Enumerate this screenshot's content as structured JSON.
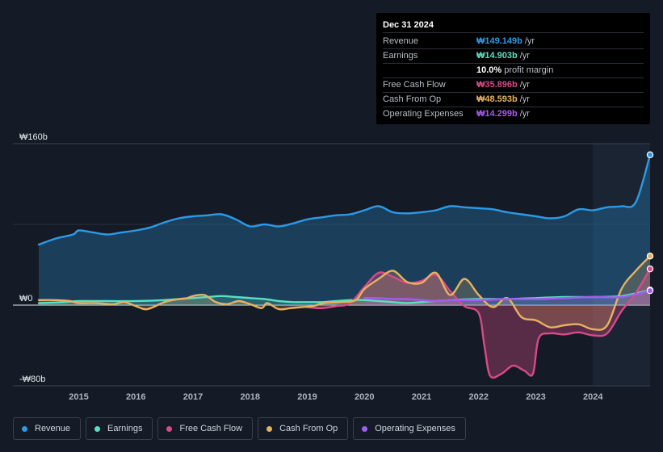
{
  "tooltip": {
    "date": "Dec 31 2024",
    "rows": [
      {
        "label": "Revenue",
        "value": "₩149.149b",
        "unit": "/yr",
        "color": "#2b9ae6"
      },
      {
        "label": "Earnings",
        "value": "₩14.903b",
        "unit": "/yr",
        "color": "#58e0c2"
      },
      {
        "label": "",
        "value": "10.0%",
        "unit": "profit margin",
        "color": "#ffffff"
      },
      {
        "label": "Free Cash Flow",
        "value": "₩35.896b",
        "unit": "/yr",
        "color": "#d84a88"
      },
      {
        "label": "Cash From Op",
        "value": "₩48.593b",
        "unit": "/yr",
        "color": "#e6b25f"
      },
      {
        "label": "Operating Expenses",
        "value": "₩14.299b",
        "unit": "/yr",
        "color": "#a35cf0"
      }
    ]
  },
  "legend": [
    {
      "label": "Revenue",
      "color": "#2b9ae6"
    },
    {
      "label": "Earnings",
      "color": "#58e0c2"
    },
    {
      "label": "Free Cash Flow",
      "color": "#d84a88"
    },
    {
      "label": "Cash From Op",
      "color": "#e6b25f"
    },
    {
      "label": "Operating Expenses",
      "color": "#a35cf0"
    }
  ],
  "chart_data": {
    "type": "line",
    "title": "",
    "xlabel": "",
    "ylabel": "",
    "y_unit": "₩b",
    "ylim": [
      -80,
      160
    ],
    "yticks": [
      {
        "value": 160,
        "label": "₩160b"
      },
      {
        "value": 0,
        "label": "₩0"
      },
      {
        "value": -80,
        "label": "-₩80b"
      }
    ],
    "xlim": [
      2014.3,
      2025.0
    ],
    "xticks": [
      2015,
      2016,
      2017,
      2018,
      2019,
      2020,
      2021,
      2022,
      2023,
      2024
    ],
    "highlight_from": 2024.0,
    "series": [
      {
        "name": "Revenue",
        "color": "#2b9ae6",
        "x": [
          2014.3,
          2014.6,
          2014.9,
          2015.0,
          2015.25,
          2015.5,
          2015.75,
          2016.0,
          2016.25,
          2016.5,
          2016.75,
          2017.0,
          2017.25,
          2017.5,
          2017.75,
          2018.0,
          2018.25,
          2018.5,
          2018.75,
          2019.0,
          2019.25,
          2019.5,
          2019.75,
          2020.0,
          2020.25,
          2020.5,
          2020.75,
          2021.0,
          2021.25,
          2021.5,
          2021.75,
          2022.0,
          2022.25,
          2022.5,
          2022.75,
          2023.0,
          2023.25,
          2023.5,
          2023.75,
          2024.0,
          2024.25,
          2024.5,
          2024.75,
          2025.0
        ],
        "values": [
          60,
          66,
          70,
          74,
          72,
          70,
          72,
          74,
          77,
          82,
          86,
          88,
          89,
          90,
          85,
          78,
          80,
          78,
          81,
          85,
          87,
          89,
          90,
          94,
          98,
          92,
          91,
          92,
          94,
          98,
          97,
          96,
          95,
          92,
          90,
          88,
          86,
          88,
          95,
          94,
          97,
          98,
          102,
          149
        ]
      },
      {
        "name": "Earnings",
        "color": "#58e0c2",
        "x": [
          2014.3,
          2014.75,
          2015.0,
          2015.5,
          2016.0,
          2016.5,
          2017.0,
          2017.25,
          2017.5,
          2017.75,
          2018.0,
          2018.25,
          2018.5,
          2018.75,
          2019.0,
          2019.25,
          2019.5,
          2019.75,
          2020.0,
          2020.25,
          2020.5,
          2020.75,
          2021.0,
          2021.5,
          2022.0,
          2022.5,
          2023.0,
          2023.5,
          2024.0,
          2024.5,
          2025.0
        ],
        "values": [
          2,
          3,
          4,
          4,
          4,
          5,
          7,
          8,
          9,
          8,
          7,
          6,
          4,
          3,
          3,
          3,
          4,
          5,
          5,
          4,
          3,
          2,
          3,
          5,
          6,
          6,
          7,
          8,
          8,
          9,
          14.9
        ]
      },
      {
        "name": "Free Cash Flow",
        "color": "#d84a88",
        "x": [
          2019.0,
          2019.25,
          2019.5,
          2019.75,
          2020.0,
          2020.25,
          2020.5,
          2020.75,
          2021.0,
          2021.25,
          2021.5,
          2021.75,
          2022.0,
          2022.1,
          2022.2,
          2022.4,
          2022.6,
          2022.8,
          2022.95,
          2023.05,
          2023.25,
          2023.5,
          2023.75,
          2024.0,
          2024.25,
          2024.5,
          2024.75,
          2025.0
        ],
        "values": [
          -2,
          -3,
          -1,
          2,
          18,
          32,
          28,
          22,
          24,
          30,
          14,
          -1,
          -8,
          -40,
          -70,
          -68,
          -60,
          -65,
          -68,
          -33,
          -28,
          -29,
          -27,
          -30,
          -28,
          -6,
          12,
          35.9
        ]
      },
      {
        "name": "Cash From Op",
        "color": "#e6b25f",
        "x": [
          2014.3,
          2014.6,
          2014.85,
          2015.0,
          2015.3,
          2015.6,
          2015.8,
          2016.0,
          2016.2,
          2016.5,
          2016.75,
          2016.9,
          2017.0,
          2017.2,
          2017.4,
          2017.6,
          2017.8,
          2018.0,
          2018.2,
          2018.3,
          2018.5,
          2018.7,
          2018.9,
          2019.1,
          2019.3,
          2019.6,
          2019.85,
          2020.0,
          2020.25,
          2020.5,
          2020.75,
          2021.0,
          2021.25,
          2021.5,
          2021.75,
          2022.0,
          2022.25,
          2022.5,
          2022.75,
          2023.0,
          2023.25,
          2023.5,
          2023.75,
          2024.0,
          2024.25,
          2024.5,
          2024.75,
          2025.0
        ],
        "values": [
          5,
          5,
          4,
          2,
          2,
          1,
          3,
          -1,
          -4,
          3,
          6,
          7,
          9,
          10,
          3,
          1,
          4,
          1,
          -3,
          2,
          -4,
          -3,
          -2,
          -1,
          2,
          3,
          5,
          16,
          26,
          34,
          23,
          22,
          32,
          10,
          26,
          10,
          -2,
          7,
          -12,
          -15,
          -22,
          -20,
          -19,
          -24,
          -20,
          16,
          34,
          48.6
        ]
      },
      {
        "name": "Operating Expenses",
        "color": "#a35cf0",
        "x": [
          2020.0,
          2020.25,
          2020.5,
          2020.75,
          2021.0,
          2021.25,
          2021.5,
          2021.75,
          2022.0,
          2022.5,
          2023.0,
          2023.5,
          2024.0,
          2024.5,
          2025.0
        ],
        "values": [
          7,
          7,
          6,
          6,
          5,
          4,
          5,
          5,
          5,
          6,
          6,
          7,
          8,
          8,
          14.3
        ]
      }
    ]
  }
}
